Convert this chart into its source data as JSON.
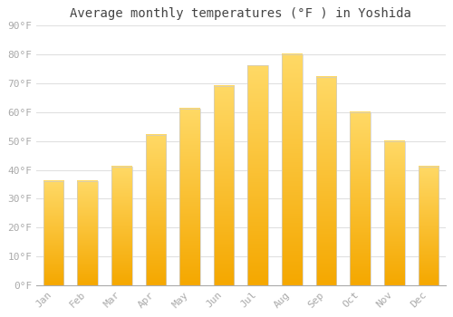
{
  "title": "Average monthly temperatures (°F ) in Yoshida",
  "months": [
    "Jan",
    "Feb",
    "Mar",
    "Apr",
    "May",
    "Jun",
    "Jul",
    "Aug",
    "Sep",
    "Oct",
    "Nov",
    "Dec"
  ],
  "values": [
    36,
    36,
    41,
    52,
    61,
    69,
    76,
    80,
    72,
    60,
    50,
    41
  ],
  "ylim": [
    0,
    90
  ],
  "yticks": [
    0,
    10,
    20,
    30,
    40,
    50,
    60,
    70,
    80,
    90
  ],
  "ytick_labels": [
    "0°F",
    "10°F",
    "20°F",
    "30°F",
    "40°F",
    "50°F",
    "60°F",
    "70°F",
    "80°F",
    "90°F"
  ],
  "background_color": "#ffffff",
  "grid_color": "#e0e0e0",
  "bar_color_bottom": "#F5A800",
  "bar_color_top": "#FFD966",
  "bar_edge_color": "#cccccc",
  "title_fontsize": 10,
  "tick_fontsize": 8,
  "bar_width": 0.6,
  "gradient_steps": 100
}
